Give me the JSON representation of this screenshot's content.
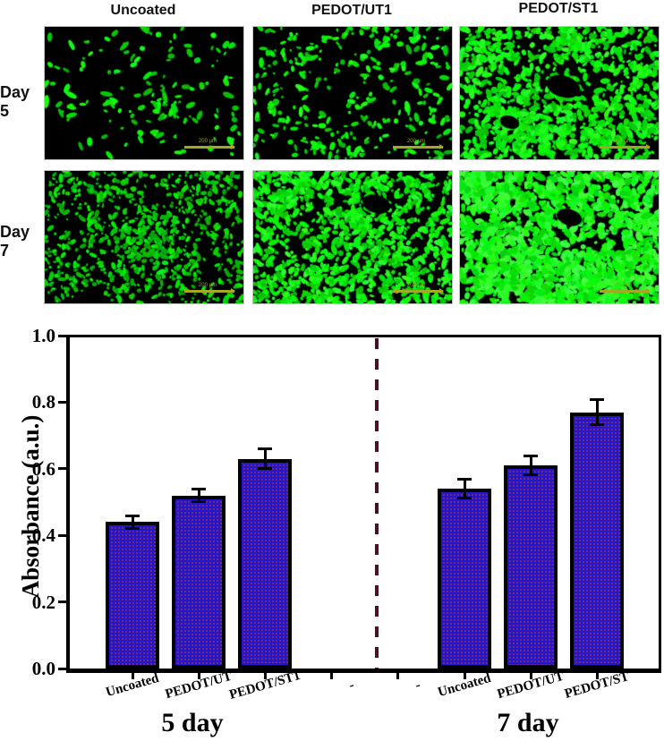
{
  "micrographs": {
    "col_headers": [
      "Uncoated",
      "PEDOT/UT1",
      "PEDOT/ST1"
    ],
    "row_labels": [
      "Day 5",
      "Day 7"
    ],
    "scale_bar_label": "200 µm",
    "cell_color": "#22dd22",
    "background_color": "#000000",
    "scale_bar_color": "#a3aa22",
    "panels": [
      {
        "id": "day5-uncoated",
        "row": 0,
        "col": 0,
        "cells": 150,
        "rmin": 1.2,
        "rmax": 3.2,
        "elong": 2.6,
        "bright": 0.92,
        "clusters": 6,
        "clusterFrac": 0.25,
        "voids": [],
        "seed": 11
      },
      {
        "id": "day5-pedot-ut1",
        "row": 0,
        "col": 1,
        "cells": 330,
        "rmin": 1.2,
        "rmax": 3.0,
        "elong": 2.4,
        "bright": 0.95,
        "clusters": 8,
        "clusterFrac": 0.3,
        "voids": [],
        "seed": 22
      },
      {
        "id": "day5-pedot-st1",
        "row": 0,
        "col": 2,
        "cells": 1200,
        "rmin": 1.2,
        "rmax": 3.4,
        "elong": 2.2,
        "bright": 1.0,
        "clusters": 10,
        "clusterFrac": 0.35,
        "voids": [
          [
            0.52,
            0.45,
            12
          ],
          [
            0.25,
            0.72,
            7
          ]
        ],
        "seed": 33
      },
      {
        "id": "day7-uncoated",
        "row": 1,
        "col": 0,
        "cells": 900,
        "rmin": 1.0,
        "rmax": 2.6,
        "elong": 2.2,
        "bright": 0.85,
        "clusters": 10,
        "clusterFrac": 0.3,
        "voids": [],
        "seed": 44
      },
      {
        "id": "day7-pedot-ut1",
        "row": 1,
        "col": 1,
        "cells": 1300,
        "rmin": 1.2,
        "rmax": 3.2,
        "elong": 2.2,
        "bright": 1.0,
        "clusters": 12,
        "clusterFrac": 0.35,
        "voids": [
          [
            0.62,
            0.25,
            10
          ]
        ],
        "seed": 55
      },
      {
        "id": "day7-pedot-st1",
        "row": 1,
        "col": 2,
        "cells": 2000,
        "rmin": 1.5,
        "rmax": 4.0,
        "elong": 2.0,
        "bright": 1.1,
        "clusters": 12,
        "clusterFrac": 0.4,
        "voids": [
          [
            0.55,
            0.35,
            9
          ]
        ],
        "seed": 66
      }
    ]
  },
  "chart_data": {
    "type": "bar",
    "title": "",
    "xlabel": "",
    "ylabel": "Absorbance (a.u.)",
    "ylim": [
      0.0,
      1.0
    ],
    "yticks": [
      "0.0",
      "0.2",
      "0.4",
      "0.6",
      "0.8",
      "1.0"
    ],
    "grid": false,
    "legend_position": "none",
    "bar_color": "#2217cf",
    "bar_dot_color": "#c83c0c",
    "divider_color": "#4a1220",
    "group_labels": [
      "5 day",
      "7 day"
    ],
    "slots": [
      {
        "label": "Uncoated",
        "group": "5 day",
        "value": 0.44,
        "error": 0.02
      },
      {
        "label": "PEDOT/UT",
        "group": "5 day",
        "value": 0.52,
        "error": 0.02
      },
      {
        "label": "PEDOT/ST1",
        "group": "5 day",
        "value": 0.63,
        "error": 0.03
      },
      {
        "label": "-",
        "group": null,
        "value": null,
        "error": null
      },
      {
        "label": "-",
        "group": null,
        "value": null,
        "error": null
      },
      {
        "label": "Uncoated",
        "group": "7 day",
        "value": 0.54,
        "error": 0.03
      },
      {
        "label": "PEDOT/UT",
        "group": "7 day",
        "value": 0.61,
        "error": 0.03
      },
      {
        "label": "PEDOT/ST",
        "group": "7 day",
        "value": 0.77,
        "error": 0.04
      }
    ]
  }
}
